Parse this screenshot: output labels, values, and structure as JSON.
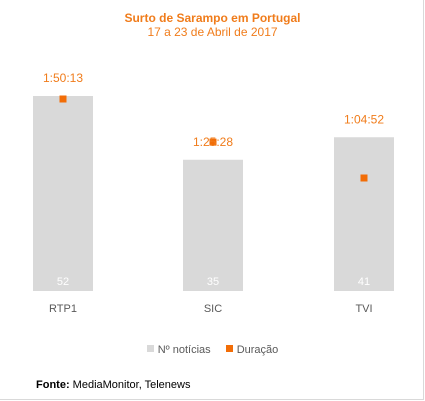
{
  "chart_data": {
    "type": "bar",
    "title": "Surto de Sarampo em Portugal",
    "subtitle": "17 a 23 de Abril de 2017",
    "categories": [
      "RTP1",
      "SIC",
      "TVI"
    ],
    "series": [
      {
        "name": "Nº notícias",
        "type": "bar",
        "values": [
          52,
          35,
          41
        ],
        "data_labels": [
          "52",
          "35",
          "41"
        ]
      },
      {
        "name": "Duração",
        "type": "scatter",
        "values_seconds": [
          6613,
          5128,
          3892
        ],
        "data_labels": [
          "1:50:13",
          "1:25:28",
          "1:04:52"
        ]
      }
    ],
    "legend_position": "bottom",
    "grid": false
  },
  "source": {
    "label": "Fonte:",
    "text": "MediaMonitor, Telenews"
  },
  "colors": {
    "bar": "#d9d9d9",
    "marker": "#f26d07",
    "accent_text": "#f07c1b",
    "category_text": "#595959",
    "bar_label_text": "#ffffff"
  }
}
